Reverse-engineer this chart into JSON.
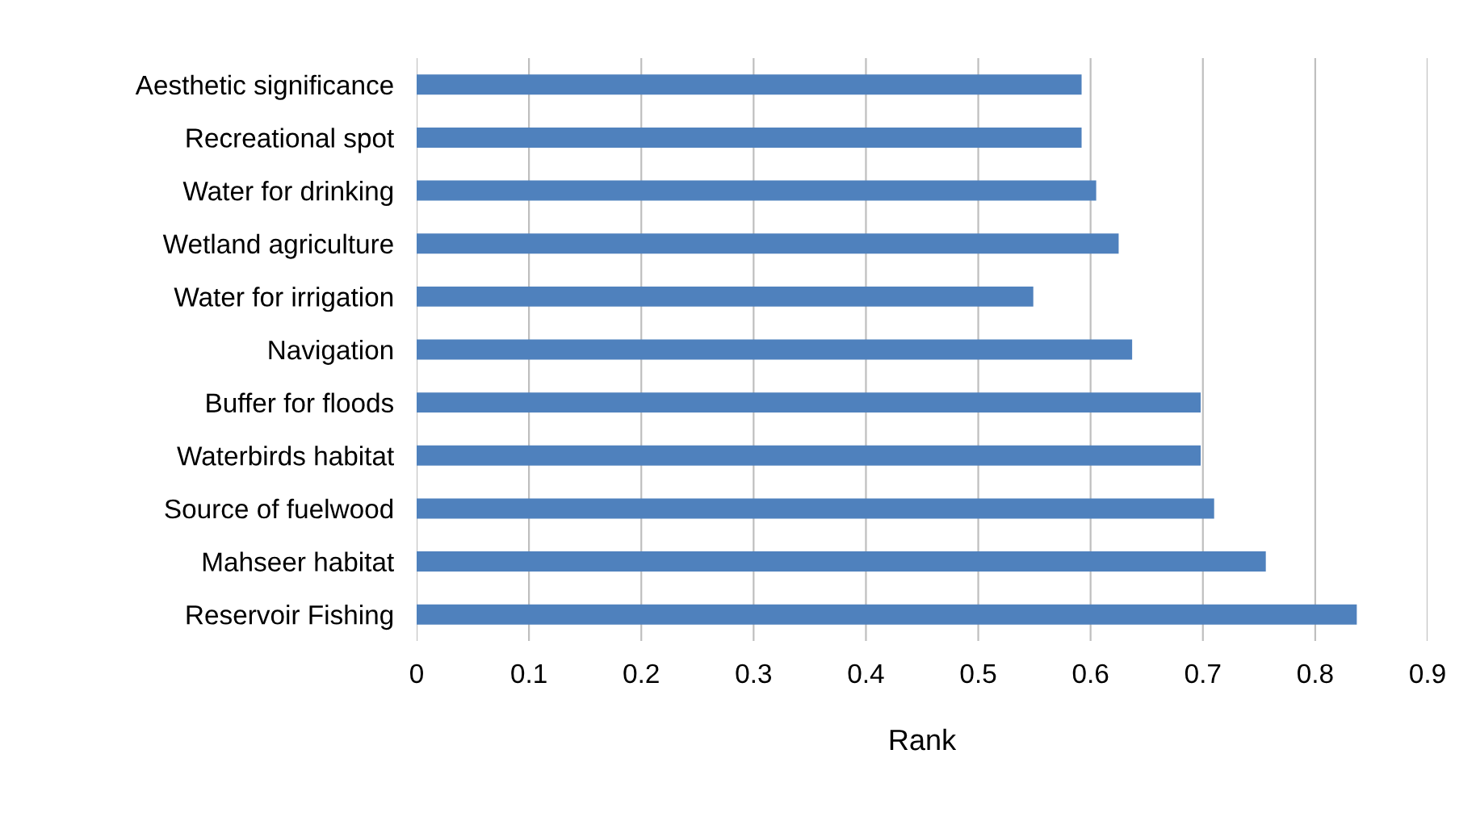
{
  "chart_data": {
    "type": "bar",
    "orientation": "horizontal",
    "xlabel": "Rank",
    "categories": [
      "Aesthetic significance",
      "Recreational spot",
      "Water for drinking",
      "Wetland agriculture",
      "Water for irrigation",
      "Navigation",
      "Buffer for floods",
      "Waterbirds habitat",
      "Source of fuelwood",
      "Mahseer habitat",
      "Reservoir Fishing"
    ],
    "values": [
      0.592,
      0.592,
      0.605,
      0.625,
      0.549,
      0.637,
      0.698,
      0.698,
      0.71,
      0.756,
      0.837
    ],
    "color": "#4f81bd",
    "xlim": [
      0,
      0.9
    ],
    "xticks": [
      0,
      0.1,
      0.2,
      0.3,
      0.4,
      0.5,
      0.6,
      0.7,
      0.8,
      0.9
    ],
    "grid": "x",
    "legend": false
  }
}
